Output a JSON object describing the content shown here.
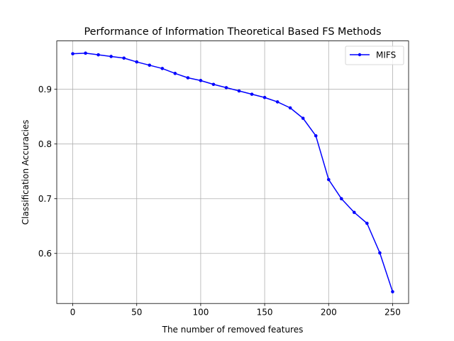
{
  "chart_data": {
    "type": "line",
    "title": "Performance of Information Theoretical Based FS Methods",
    "xlabel": "The number of removed features",
    "ylabel": "Classification Accuracies",
    "xlim": [
      -12.5,
      262.5
    ],
    "ylim": [
      0.5085,
      0.9884
    ],
    "xticks": [
      0,
      50,
      100,
      150,
      200,
      250
    ],
    "yticks": [
      0.6,
      0.7,
      0.8,
      0.9
    ],
    "xtick_labels": [
      "0",
      "50",
      "100",
      "150",
      "200",
      "250"
    ],
    "ytick_labels": [
      "0.6",
      "0.7",
      "0.8",
      "0.9"
    ],
    "grid": true,
    "legend_position": "upper right",
    "series": [
      {
        "name": "MIFS",
        "color": "#0000ff",
        "marker": "circle",
        "x": [
          0,
          10,
          20,
          30,
          40,
          50,
          60,
          70,
          80,
          90,
          100,
          110,
          120,
          130,
          140,
          150,
          160,
          170,
          180,
          190,
          200,
          210,
          220,
          230,
          240,
          250
        ],
        "y": [
          0.965,
          0.966,
          0.963,
          0.96,
          0.957,
          0.95,
          0.944,
          0.938,
          0.929,
          0.921,
          0.916,
          0.909,
          0.903,
          0.897,
          0.891,
          0.885,
          0.877,
          0.866,
          0.847,
          0.815,
          0.735,
          0.7,
          0.675,
          0.655,
          0.601,
          0.53
        ]
      }
    ]
  }
}
